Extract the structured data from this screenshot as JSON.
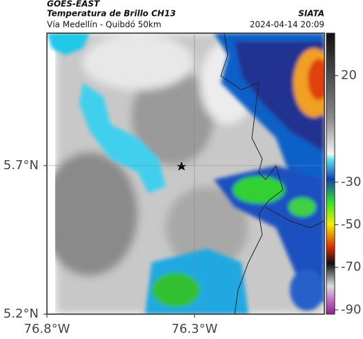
{
  "header": {
    "product": "GOES-EAST",
    "title": "Temperatura de Brillo CH13",
    "subtitle": "Vía Medellín - Quibdó 50km",
    "agency": "SIATA",
    "timestamp": "2024-04-14 20:09"
  },
  "map": {
    "xlim": [
      -76.8,
      -75.86
    ],
    "ylim": [
      5.2,
      6.146
    ],
    "xticks": [
      {
        "value": -76.8,
        "label": "76.8°W"
      },
      {
        "value": -76.3,
        "label": "76.3°W"
      }
    ],
    "yticks": [
      {
        "value": 5.7,
        "label": "5.7°N"
      },
      {
        "value": 5.2,
        "label": "5.2°N"
      }
    ],
    "grid": true
  },
  "colorbar": {
    "lim": [
      -92,
      40
    ],
    "ticks": [
      20,
      -30,
      -50,
      -70,
      -90
    ]
  }
}
